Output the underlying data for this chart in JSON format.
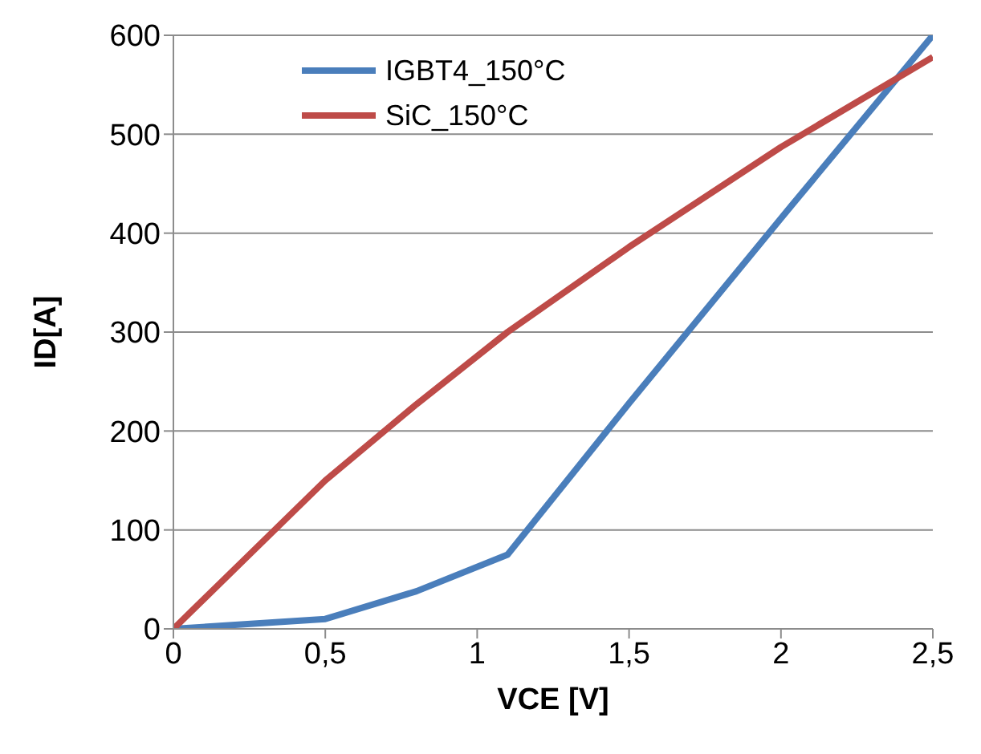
{
  "chart_data": {
    "type": "line",
    "xlabel": "VCE [V]",
    "ylabel": "ID[A]",
    "xlim": [
      0,
      2.5
    ],
    "xticks": [
      0,
      {
        "value": 0.5,
        "label": "0,5"
      },
      1,
      {
        "value": 1.5,
        "label": "1,5"
      },
      2,
      {
        "value": 2.5,
        "label": "2,5"
      }
    ],
    "ylim": [
      0,
      600
    ],
    "yticks": [
      0,
      100,
      200,
      300,
      400,
      500,
      600
    ],
    "grid": "y",
    "legend": "top left",
    "marker": "none",
    "line_style": "solid",
    "series": [
      {
        "name": "IGBT4_150°C",
        "color": "#4a7ebb",
        "x": [
          0,
          0.5,
          0.8,
          1.1,
          1.5,
          2,
          2.5
        ],
        "values": [
          0,
          10,
          38,
          75,
          228,
          415,
          600
        ]
      },
      {
        "name": "SiC_150°C",
        "color": "#be4b48",
        "x": [
          0,
          0.25,
          0.5,
          0.8,
          1.1,
          1.5,
          2,
          2.5
        ],
        "values": [
          0,
          75,
          150,
          227,
          300,
          386,
          487,
          578
        ]
      }
    ]
  }
}
